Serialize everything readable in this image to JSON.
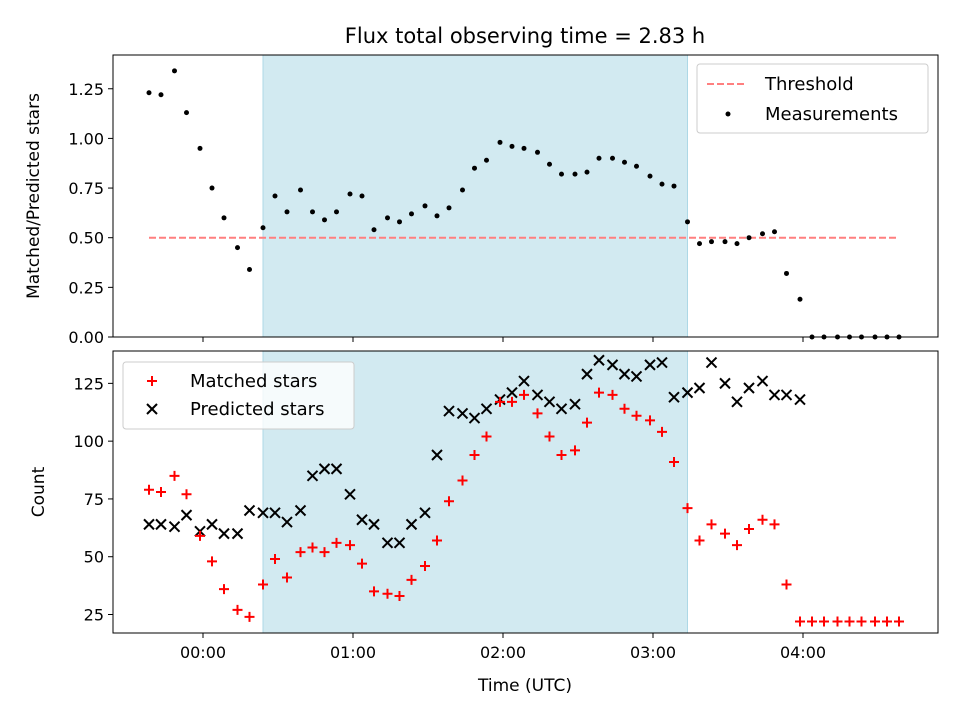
{
  "title": "Flux total observing time = 2.83 h",
  "colors": {
    "shade": "#add8e6",
    "threshold": "#ff7f7f",
    "measurements": "#000000",
    "matched": "#ff0000",
    "predicted": "#000000"
  },
  "chart_data": [
    {
      "type": "scatter",
      "panel": "top",
      "ylabel": "Matched/Predicted stars",
      "ylim": [
        0,
        1.42
      ],
      "yticks": [
        0.0,
        0.25,
        0.5,
        0.75,
        1.0,
        1.25
      ],
      "ytick_labels": [
        "0.00",
        "0.25",
        "0.50",
        "0.75",
        "1.00",
        "1.25"
      ],
      "xlim": [
        -0.6,
        4.9
      ],
      "xticks": [
        0,
        1,
        2,
        3,
        4
      ],
      "x_unit": "hours after 00:00 UTC",
      "shaded_span": [
        0.4,
        3.23
      ],
      "legend_position": "upper right",
      "threshold": {
        "name": "Threshold",
        "value": 0.5,
        "x_range": [
          -0.36,
          4.64
        ]
      },
      "series": [
        {
          "name": "Measurements",
          "marker": "dot",
          "x": [
            -0.36,
            -0.28,
            -0.19,
            -0.11,
            -0.02,
            0.06,
            0.14,
            0.23,
            0.31,
            0.4,
            0.48,
            0.56,
            0.65,
            0.73,
            0.81,
            0.89,
            0.98,
            1.06,
            1.14,
            1.23,
            1.31,
            1.39,
            1.48,
            1.56,
            1.64,
            1.73,
            1.81,
            1.89,
            1.98,
            2.06,
            2.14,
            2.23,
            2.31,
            2.39,
            2.48,
            2.56,
            2.64,
            2.73,
            2.81,
            2.89,
            2.98,
            3.06,
            3.14,
            3.23,
            3.31,
            3.39,
            3.48,
            3.56,
            3.64,
            3.73,
            3.81,
            3.89,
            3.98,
            4.06,
            4.14,
            4.23,
            4.31,
            4.39,
            4.48,
            4.56,
            4.64
          ],
          "y": [
            1.23,
            1.22,
            1.34,
            1.13,
            0.95,
            0.75,
            0.6,
            0.45,
            0.34,
            0.55,
            0.71,
            0.63,
            0.74,
            0.63,
            0.59,
            0.63,
            0.72,
            0.71,
            0.54,
            0.6,
            0.58,
            0.62,
            0.66,
            0.61,
            0.65,
            0.74,
            0.85,
            0.89,
            0.98,
            0.96,
            0.95,
            0.93,
            0.87,
            0.82,
            0.82,
            0.83,
            0.9,
            0.9,
            0.88,
            0.86,
            0.81,
            0.77,
            0.76,
            0.58,
            0.47,
            0.48,
            0.48,
            0.47,
            0.5,
            0.52,
            0.53,
            0.32,
            0.19,
            0.0,
            0.0,
            0.0,
            0.0,
            0.0,
            0.0,
            0.0,
            0.0
          ]
        }
      ]
    },
    {
      "type": "scatter",
      "panel": "bottom",
      "ylabel": "Count",
      "xlabel": "Time (UTC)",
      "ylim": [
        17,
        139
      ],
      "yticks": [
        25,
        50,
        75,
        100,
        125
      ],
      "ytick_labels": [
        "25",
        "50",
        "75",
        "100",
        "125"
      ],
      "xlim": [
        -0.6,
        4.9
      ],
      "xticks": [
        0,
        1,
        2,
        3,
        4
      ],
      "xtick_labels": [
        "00:00",
        "01:00",
        "02:00",
        "03:00",
        "04:00"
      ],
      "x_unit": "hours after 00:00 UTC",
      "shaded_span": [
        0.4,
        3.23
      ],
      "legend_position": "upper left",
      "series": [
        {
          "name": "Matched stars",
          "marker": "plus",
          "x": [
            -0.36,
            -0.28,
            -0.19,
            -0.11,
            -0.02,
            0.06,
            0.14,
            0.23,
            0.31,
            0.4,
            0.48,
            0.56,
            0.65,
            0.73,
            0.81,
            0.89,
            0.98,
            1.06,
            1.14,
            1.23,
            1.31,
            1.39,
            1.48,
            1.56,
            1.64,
            1.73,
            1.81,
            1.89,
            1.98,
            2.06,
            2.14,
            2.23,
            2.31,
            2.39,
            2.48,
            2.56,
            2.64,
            2.73,
            2.81,
            2.89,
            2.98,
            3.06,
            3.14,
            3.23,
            3.31,
            3.39,
            3.48,
            3.56,
            3.64,
            3.73,
            3.81,
            3.89,
            3.98,
            4.06,
            4.14,
            4.23,
            4.31,
            4.39,
            4.48,
            4.56,
            4.64
          ],
          "y": [
            79,
            78,
            85,
            77,
            59,
            48,
            36,
            27,
            24,
            38,
            49,
            41,
            52,
            54,
            52,
            56,
            55,
            47,
            35,
            34,
            33,
            40,
            46,
            57,
            74,
            83,
            94,
            102,
            117,
            117,
            120,
            112,
            102,
            94,
            96,
            108,
            121,
            120,
            114,
            111,
            109,
            104,
            91,
            71,
            57,
            64,
            60,
            55,
            62,
            66,
            64,
            38,
            22,
            22,
            22,
            22,
            22,
            22,
            22,
            22,
            22
          ]
        },
        {
          "name": "Predicted stars",
          "marker": "x",
          "x": [
            -0.36,
            -0.28,
            -0.19,
            -0.11,
            -0.02,
            0.06,
            0.14,
            0.23,
            0.31,
            0.4,
            0.48,
            0.56,
            0.65,
            0.73,
            0.81,
            0.89,
            0.98,
            1.06,
            1.14,
            1.23,
            1.31,
            1.39,
            1.48,
            1.56,
            1.64,
            1.73,
            1.81,
            1.89,
            1.98,
            2.06,
            2.14,
            2.23,
            2.31,
            2.39,
            2.48,
            2.56,
            2.64,
            2.73,
            2.81,
            2.89,
            2.98,
            3.06,
            3.14,
            3.23,
            3.31,
            3.39,
            3.48,
            3.56,
            3.64,
            3.73,
            3.81,
            3.89,
            3.98
          ],
          "y": [
            64,
            64,
            63,
            68,
            61,
            64,
            60,
            60,
            70,
            69,
            69,
            65,
            70,
            85,
            88,
            88,
            77,
            66,
            64,
            56,
            56,
            64,
            69,
            94,
            113,
            112,
            110,
            114,
            118,
            121,
            126,
            120,
            117,
            114,
            116,
            129,
            135,
            133,
            129,
            128,
            133,
            134,
            119,
            121,
            123,
            134,
            125,
            117,
            123,
            126,
            120,
            120,
            118
          ]
        }
      ]
    }
  ]
}
